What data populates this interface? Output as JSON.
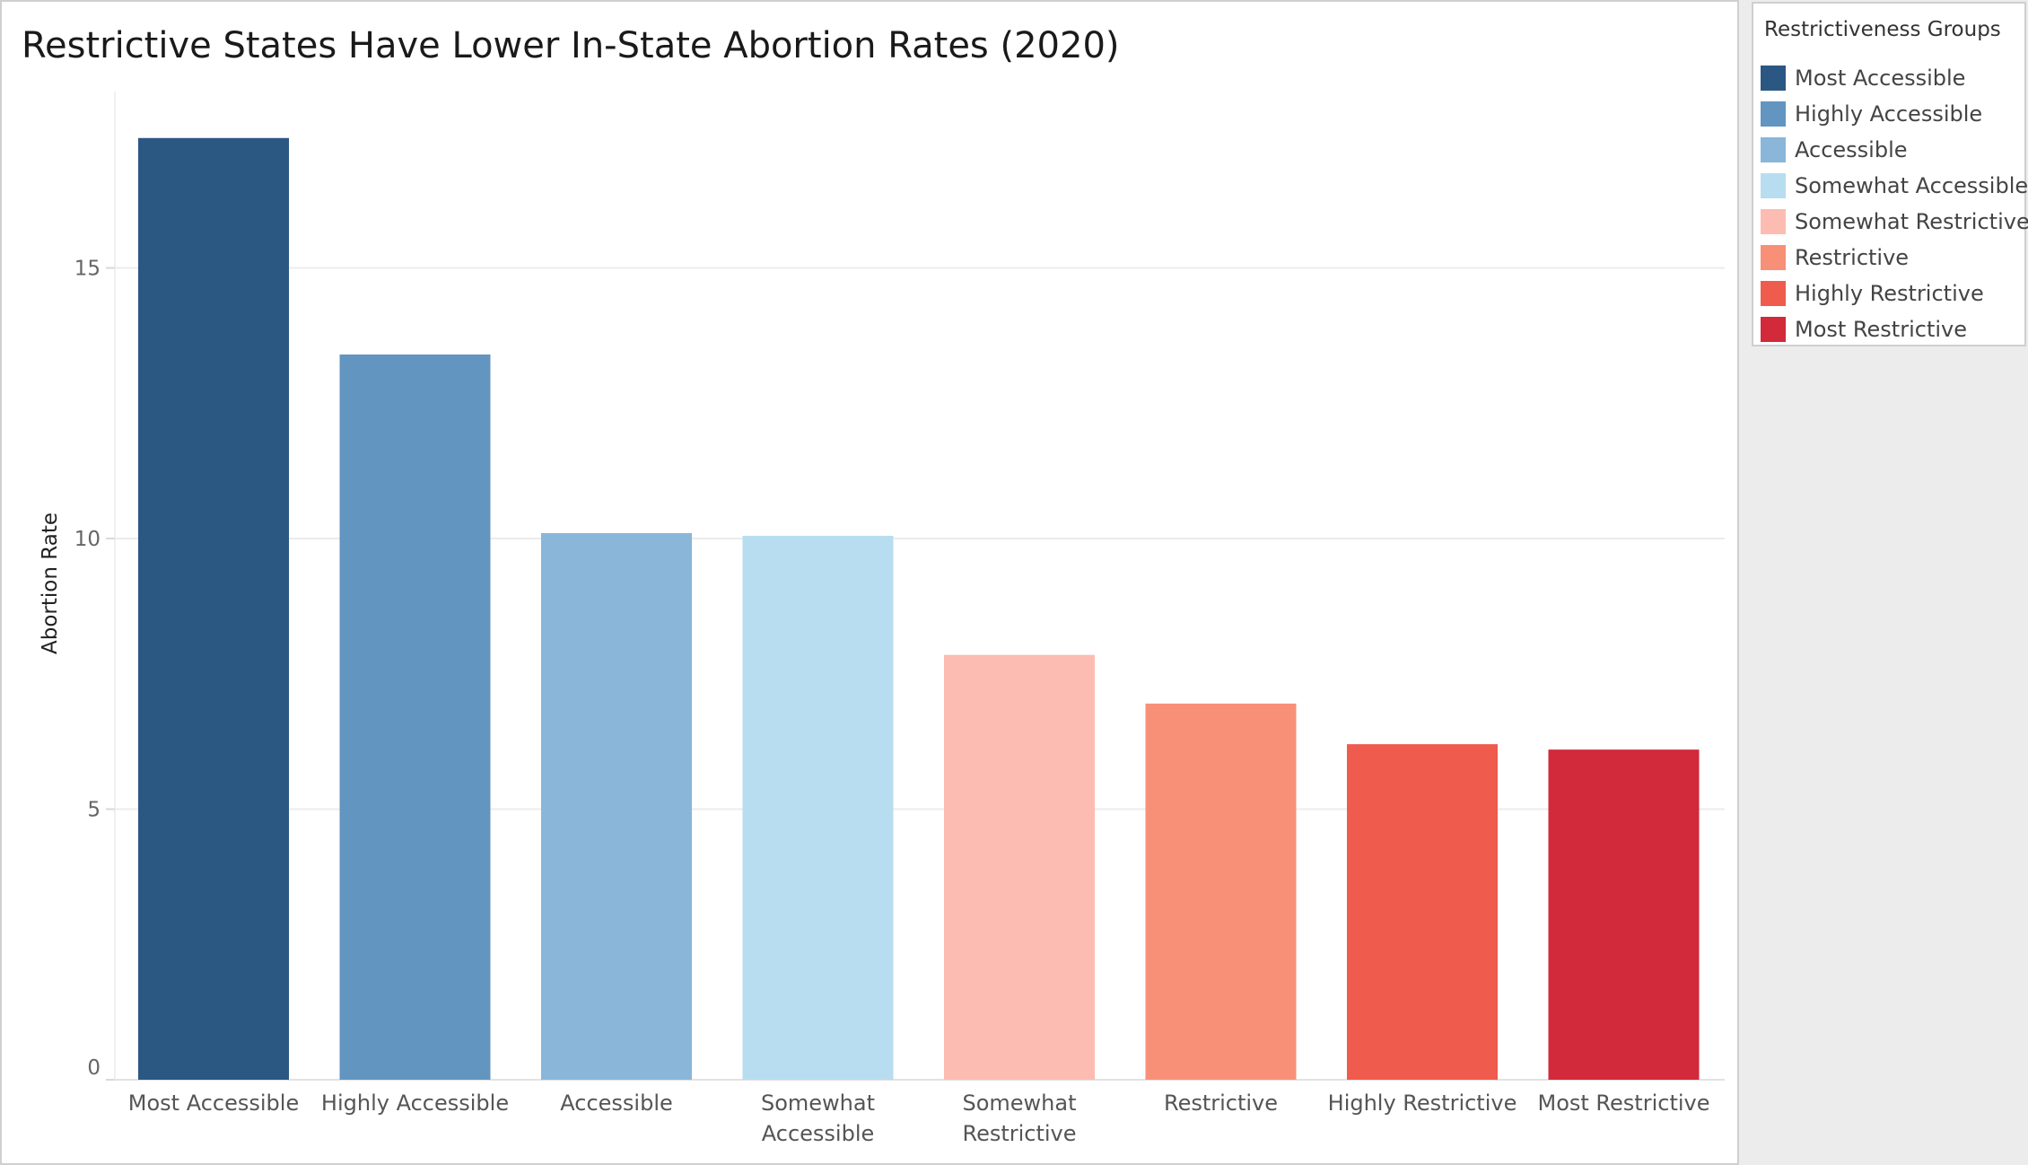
{
  "chart_data": {
    "type": "bar",
    "title": "Restrictive States Have Lower In-State Abortion Rates (2020)",
    "ylabel": "Abortion Rate",
    "xlabel": "",
    "categories": [
      "Most Accessible",
      "Highly Accessible",
      "Accessible",
      "Somewhat Accessible",
      "Somewhat Restrictive",
      "Restrictive",
      "Highly Restrictive",
      "Most Restrictive"
    ],
    "category_label_lines": [
      [
        "Most Accessible"
      ],
      [
        "Highly Accessible"
      ],
      [
        "Accessible"
      ],
      [
        "Somewhat",
        "Accessible"
      ],
      [
        "Somewhat",
        "Restrictive"
      ],
      [
        "Restrictive"
      ],
      [
        "Highly Restrictive"
      ],
      [
        "Most Restrictive"
      ]
    ],
    "values": [
      17.4,
      13.4,
      10.1,
      10.05,
      7.85,
      6.95,
      6.2,
      6.1
    ],
    "colors": [
      "#2b5783",
      "#6295c0",
      "#89b6d9",
      "#b8ddf0",
      "#fdbcb1",
      "#f89078",
      "#ef5b4d",
      "#d2293b"
    ],
    "yticks": [
      0,
      5,
      10,
      15
    ],
    "ylim": [
      0,
      18
    ],
    "grid": true,
    "legend": {
      "title": "Restrictiveness Groups",
      "placement": "right",
      "items": [
        {
          "label": "Most Accessible",
          "color": "#2b5783"
        },
        {
          "label": "Highly Accessible",
          "color": "#6295c0"
        },
        {
          "label": "Accessible",
          "color": "#89b6d9"
        },
        {
          "label": "Somewhat Accessible",
          "color": "#b8ddf0"
        },
        {
          "label": "Somewhat Restrictive",
          "color": "#fdbcb1"
        },
        {
          "label": "Restrictive",
          "color": "#f89078"
        },
        {
          "label": "Highly Restrictive",
          "color": "#ef5b4d"
        },
        {
          "label": "Most Restrictive",
          "color": "#d2293b"
        }
      ]
    }
  }
}
